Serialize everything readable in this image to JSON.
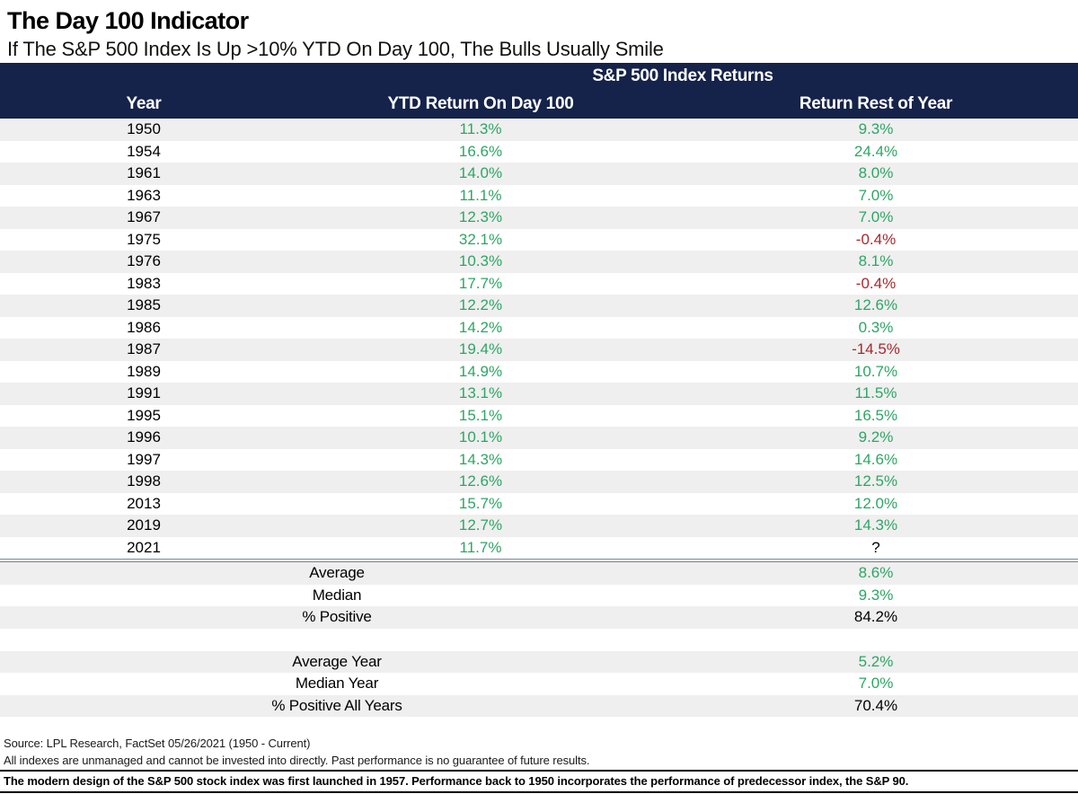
{
  "title": "The Day 100 Indicator",
  "subtitle": "If The S&P 500 Index Is Up >10% YTD On Day 100, The Bulls Usually Smile",
  "colors": {
    "header_navy": "#15234A",
    "positive_green": "#2FA565",
    "negative_red": "#A6292E",
    "row_stripe": "#EFEFEF",
    "separator_gray": "#7A8696"
  },
  "table": {
    "group_header": "S&P 500 Index Returns",
    "columns": [
      "Year",
      "YTD Return On Day 100",
      "Return Rest of Year"
    ],
    "rows": [
      {
        "year": "1950",
        "ytd": "11.3%",
        "ytd_tone": "pos",
        "rest": "9.3%",
        "rest_tone": "pos"
      },
      {
        "year": "1954",
        "ytd": "16.6%",
        "ytd_tone": "pos",
        "rest": "24.4%",
        "rest_tone": "pos"
      },
      {
        "year": "1961",
        "ytd": "14.0%",
        "ytd_tone": "pos",
        "rest": "8.0%",
        "rest_tone": "pos"
      },
      {
        "year": "1963",
        "ytd": "11.1%",
        "ytd_tone": "pos",
        "rest": "7.0%",
        "rest_tone": "pos"
      },
      {
        "year": "1967",
        "ytd": "12.3%",
        "ytd_tone": "pos",
        "rest": "7.0%",
        "rest_tone": "pos"
      },
      {
        "year": "1975",
        "ytd": "32.1%",
        "ytd_tone": "pos",
        "rest": "-0.4%",
        "rest_tone": "neg"
      },
      {
        "year": "1976",
        "ytd": "10.3%",
        "ytd_tone": "pos",
        "rest": "8.1%",
        "rest_tone": "pos"
      },
      {
        "year": "1983",
        "ytd": "17.7%",
        "ytd_tone": "pos",
        "rest": "-0.4%",
        "rest_tone": "neg"
      },
      {
        "year": "1985",
        "ytd": "12.2%",
        "ytd_tone": "pos",
        "rest": "12.6%",
        "rest_tone": "pos"
      },
      {
        "year": "1986",
        "ytd": "14.2%",
        "ytd_tone": "pos",
        "rest": "0.3%",
        "rest_tone": "pos"
      },
      {
        "year": "1987",
        "ytd": "19.4%",
        "ytd_tone": "pos",
        "rest": "-14.5%",
        "rest_tone": "neg"
      },
      {
        "year": "1989",
        "ytd": "14.9%",
        "ytd_tone": "pos",
        "rest": "10.7%",
        "rest_tone": "pos"
      },
      {
        "year": "1991",
        "ytd": "13.1%",
        "ytd_tone": "pos",
        "rest": "11.5%",
        "rest_tone": "pos"
      },
      {
        "year": "1995",
        "ytd": "15.1%",
        "ytd_tone": "pos",
        "rest": "16.5%",
        "rest_tone": "pos"
      },
      {
        "year": "1996",
        "ytd": "10.1%",
        "ytd_tone": "pos",
        "rest": "9.2%",
        "rest_tone": "pos"
      },
      {
        "year": "1997",
        "ytd": "14.3%",
        "ytd_tone": "pos",
        "rest": "14.6%",
        "rest_tone": "pos"
      },
      {
        "year": "1998",
        "ytd": "12.6%",
        "ytd_tone": "pos",
        "rest": "12.5%",
        "rest_tone": "pos"
      },
      {
        "year": "2013",
        "ytd": "15.7%",
        "ytd_tone": "pos",
        "rest": "12.0%",
        "rest_tone": "pos"
      },
      {
        "year": "2019",
        "ytd": "12.7%",
        "ytd_tone": "pos",
        "rest": "14.3%",
        "rest_tone": "pos"
      },
      {
        "year": "2021",
        "ytd": "11.7%",
        "ytd_tone": "pos",
        "rest": "?",
        "rest_tone": "neu"
      }
    ],
    "summary_sections": [
      [
        {
          "label": "Average",
          "value": "8.6%",
          "tone": "pos"
        },
        {
          "label": "Median",
          "value": "9.3%",
          "tone": "pos"
        },
        {
          "label": "% Positive",
          "value": "84.2%",
          "tone": "neu"
        }
      ],
      [
        {
          "label": "Average Year",
          "value": "5.2%",
          "tone": "pos"
        },
        {
          "label": "Median Year",
          "value": "7.0%",
          "tone": "pos"
        },
        {
          "label": "% Positive All Years",
          "value": "70.4%",
          "tone": "neu"
        }
      ]
    ]
  },
  "footer": {
    "lines": [
      "Source: LPL Research, FactSet 05/26/2021 (1950 - Current)",
      "All indexes are unmanaged and cannot be invested into directly. Past performance is no guarantee of future results."
    ],
    "emphasis": "The modern design of the S&P 500 stock index was first launched in 1957. Performance back to 1950 incorporates the performance of predecessor index, the S&P 90."
  },
  "chart_data": {
    "type": "table",
    "title": "The Day 100 Indicator",
    "subtitle": "If The S&P 500 Index Is Up >10% YTD On Day 100, The Bulls Usually Smile",
    "group_header": "S&P 500 Index Returns",
    "columns": [
      "Year",
      "YTD Return On Day 100",
      "Return Rest of Year"
    ],
    "rows": [
      [
        1950,
        11.3,
        9.3
      ],
      [
        1954,
        16.6,
        24.4
      ],
      [
        1961,
        14.0,
        8.0
      ],
      [
        1963,
        11.1,
        7.0
      ],
      [
        1967,
        12.3,
        7.0
      ],
      [
        1975,
        32.1,
        -0.4
      ],
      [
        1976,
        10.3,
        8.1
      ],
      [
        1983,
        17.7,
        -0.4
      ],
      [
        1985,
        12.2,
        12.6
      ],
      [
        1986,
        14.2,
        0.3
      ],
      [
        1987,
        19.4,
        -14.5
      ],
      [
        1989,
        14.9,
        10.7
      ],
      [
        1991,
        13.1,
        11.5
      ],
      [
        1995,
        15.1,
        16.5
      ],
      [
        1996,
        10.1,
        9.2
      ],
      [
        1997,
        14.3,
        14.6
      ],
      [
        1998,
        12.6,
        12.5
      ],
      [
        2013,
        15.7,
        12.0
      ],
      [
        2019,
        12.7,
        14.3
      ],
      [
        2021,
        11.7,
        null
      ]
    ],
    "summary": {
      "average_rest_of_year_pct": 8.6,
      "median_rest_of_year_pct": 9.3,
      "pct_positive": 84.2,
      "average_year_pct": 5.2,
      "median_year_pct": 7.0,
      "pct_positive_all_years": 70.4
    }
  }
}
